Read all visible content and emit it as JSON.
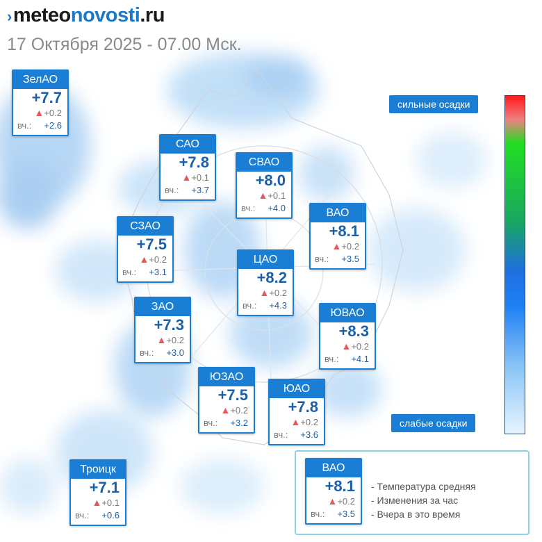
{
  "header": {
    "brand_prefix": "meteo",
    "brand_middle": "novosti",
    "brand_suffix": ".ru",
    "subtitle": "17 Октября 2025 - 07.00 Мск."
  },
  "districts": [
    {
      "name": "ЗелАО",
      "temp": "+7.7",
      "change": "+0.2",
      "yesterday_label": "вч.:",
      "yesterday": "+2.6"
    },
    {
      "name": "САО",
      "temp": "+7.8",
      "change": "+0.1",
      "yesterday_label": "вч.:",
      "yesterday": "+3.7"
    },
    {
      "name": "СВАО",
      "temp": "+8.0",
      "change": "+0.1",
      "yesterday_label": "вч.:",
      "yesterday": "+4.0"
    },
    {
      "name": "СЗАО",
      "temp": "+7.5",
      "change": "+0.2",
      "yesterday_label": "вч.:",
      "yesterday": "+3.1"
    },
    {
      "name": "ВАО",
      "temp": "+8.1",
      "change": "+0.2",
      "yesterday_label": "вч.:",
      "yesterday": "+3.5"
    },
    {
      "name": "ЦАО",
      "temp": "+8.2",
      "change": "+0.2",
      "yesterday_label": "вч.:",
      "yesterday": "+4.3"
    },
    {
      "name": "ЗАО",
      "temp": "+7.3",
      "change": "+0.2",
      "yesterday_label": "вч.:",
      "yesterday": "+3.0"
    },
    {
      "name": "ЮВАО",
      "temp": "+8.3",
      "change": "+0.2",
      "yesterday_label": "вч.:",
      "yesterday": "+4.1"
    },
    {
      "name": "ЮЗАО",
      "temp": "+7.5",
      "change": "+0.2",
      "yesterday_label": "вч.:",
      "yesterday": "+3.2"
    },
    {
      "name": "ЮАО",
      "temp": "+7.8",
      "change": "+0.2",
      "yesterday_label": "вч.:",
      "yesterday": "+3.6"
    },
    {
      "name": "Троицк",
      "temp": "+7.1",
      "change": "+0.1",
      "yesterday_label": "вч.:",
      "yesterday": "+0.6"
    }
  ],
  "precip_scale": {
    "top_label": "сильные осадки",
    "bottom_label": "слабые осадки",
    "colors": [
      "#ff1a1a",
      "#22dd22",
      "#1aa860",
      "#1e6fe0",
      "#88c4f5",
      "#e8f4ff"
    ]
  },
  "legend": {
    "sample": {
      "name": "ВАО",
      "temp": "+8.1",
      "change": "+0.2",
      "yesterday_label": "вч.:",
      "yesterday": "+3.5"
    },
    "line_1": "- Температура средняя",
    "line_2": "- Изменения за час",
    "line_3": "- Вчера в это время"
  },
  "icons": {
    "change_indicator": "triangle-up-icon",
    "logo_mark": "logo-chevron-icon"
  },
  "accent_color": "#1a7fd4"
}
